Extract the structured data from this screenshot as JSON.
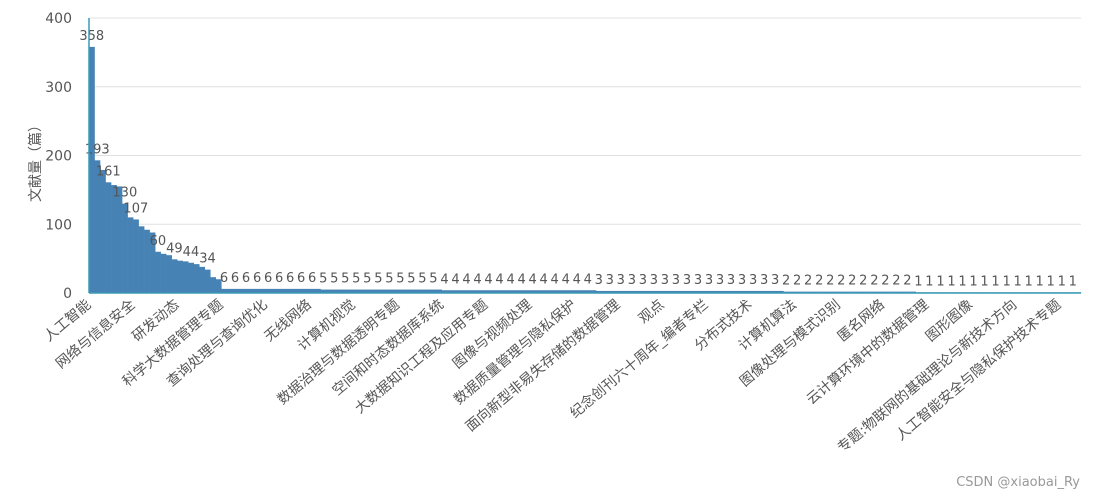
{
  "chart_data": {
    "type": "bar",
    "y_label": "文献量（篇）",
    "watermark": "CSDN @xiaobai_Ry",
    "color": "#4682b4",
    "ylim": [
      0,
      400
    ],
    "yticks": [
      0,
      100,
      200,
      300,
      400
    ],
    "grid": true,
    "categories": [
      "人工智能",
      null,
      null,
      null,
      null,
      null,
      null,
      null,
      "网络与信息安全",
      null,
      null,
      null,
      null,
      null,
      null,
      null,
      "研发动态",
      null,
      null,
      null,
      null,
      null,
      null,
      null,
      "科学大数据管理专题",
      null,
      null,
      null,
      null,
      null,
      null,
      null,
      "查询处理与查询优化",
      null,
      null,
      null,
      null,
      null,
      null,
      null,
      "无线网络",
      null,
      null,
      null,
      null,
      null,
      null,
      null,
      "计算机视觉",
      null,
      null,
      null,
      null,
      null,
      null,
      null,
      "数据治理与数据透明专题",
      null,
      null,
      null,
      null,
      null,
      null,
      null,
      "空间和时态数据库系统",
      null,
      null,
      null,
      null,
      null,
      null,
      null,
      "大数据知识工程及应用专题",
      null,
      null,
      null,
      null,
      null,
      null,
      null,
      "图像与视频处理",
      null,
      null,
      null,
      null,
      null,
      null,
      null,
      "数据质量管理与隐私保护",
      null,
      null,
      null,
      null,
      null,
      null,
      null,
      "面向新型非易失存储的数据管理",
      null,
      null,
      null,
      null,
      null,
      null,
      null,
      "观点",
      null,
      null,
      null,
      null,
      null,
      null,
      null,
      "纪念创刊六十周年_编者专栏",
      null,
      null,
      null,
      null,
      null,
      null,
      null,
      "分布式技术",
      null,
      null,
      null,
      null,
      null,
      null,
      null,
      "计算机算法",
      null,
      null,
      null,
      null,
      null,
      null,
      null,
      "图像处理与模式识别",
      null,
      null,
      null,
      null,
      null,
      null,
      null,
      "匿名网络",
      null,
      null,
      null,
      null,
      null,
      null,
      null,
      "云计算环境中的数据管理",
      null,
      null,
      null,
      null,
      null,
      null,
      null,
      "图形图像",
      null,
      null,
      null,
      null,
      null,
      null,
      null,
      "专题:物联网的基础理论与新技术方向",
      null,
      null,
      null,
      null,
      null,
      null,
      null,
      "人工智能安全与隐私保护技术专题",
      null,
      null,
      null
    ],
    "values": [
      358,
      193,
      179,
      161,
      157,
      155,
      130,
      110,
      107,
      97,
      92,
      88,
      60,
      57,
      55,
      49,
      47,
      46,
      44,
      42,
      38,
      34,
      23,
      20,
      6,
      6,
      6,
      6,
      6,
      6,
      6,
      6,
      6,
      6,
      6,
      6,
      6,
      6,
      6,
      6,
      6,
      6,
      5,
      5,
      5,
      5,
      5,
      5,
      5,
      5,
      5,
      5,
      5,
      5,
      5,
      5,
      5,
      5,
      5,
      5,
      5,
      5,
      5,
      5,
      4,
      4,
      4,
      4,
      4,
      4,
      4,
      4,
      4,
      4,
      4,
      4,
      4,
      4,
      4,
      4,
      4,
      4,
      4,
      4,
      4,
      4,
      4,
      4,
      4,
      4,
      4,
      4,
      3,
      3,
      3,
      3,
      3,
      3,
      3,
      3,
      3,
      3,
      3,
      3,
      3,
      3,
      3,
      3,
      3,
      3,
      3,
      3,
      3,
      3,
      3,
      3,
      3,
      3,
      3,
      3,
      3,
      3,
      3,
      3,
      3,
      3,
      2,
      2,
      2,
      2,
      2,
      2,
      2,
      2,
      2,
      2,
      2,
      2,
      2,
      2,
      2,
      2,
      2,
      2,
      2,
      2,
      2,
      2,
      2,
      2,
      1,
      1,
      1,
      1,
      1,
      1,
      1,
      1,
      1,
      1,
      1,
      1,
      1,
      1,
      1,
      1,
      1,
      1,
      1,
      1,
      1,
      1,
      1,
      1,
      1,
      1,
      1,
      1,
      1,
      1
    ]
  }
}
